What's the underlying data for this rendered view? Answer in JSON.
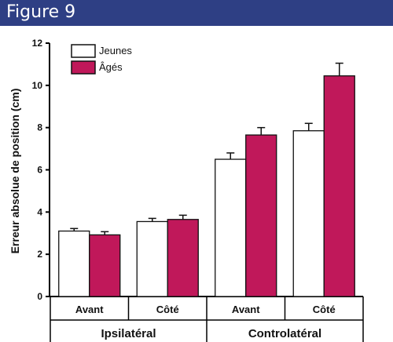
{
  "header": {
    "title": "Figure 9",
    "background": "#2e3f84"
  },
  "chart_data": {
    "type": "bar",
    "categories": [
      "Avant",
      "Côté",
      "Avant",
      "Côté"
    ],
    "groups": [
      {
        "label": "Ipsilatéral",
        "categories": [
          "Avant",
          "Côté"
        ]
      },
      {
        "label": "Controlatéral",
        "categories": [
          "Avant",
          "Côté"
        ]
      }
    ],
    "series": [
      {
        "name": "Jeunes",
        "color": "#ffffff",
        "values": [
          3.1,
          3.55,
          6.5,
          7.85
        ],
        "errors": [
          0.12,
          0.15,
          0.3,
          0.35
        ]
      },
      {
        "name": "Âgés",
        "color": "#c0185a",
        "values": [
          2.92,
          3.65,
          7.65,
          10.45
        ],
        "errors": [
          0.15,
          0.2,
          0.35,
          0.6
        ]
      }
    ],
    "ylabel": "Erreur absolue de position (cm)",
    "xlabel": "",
    "ylim": [
      0,
      12
    ],
    "yticks": [
      0,
      2,
      4,
      6,
      8,
      10,
      12
    ],
    "legend_position": "top-left",
    "grid": false
  }
}
